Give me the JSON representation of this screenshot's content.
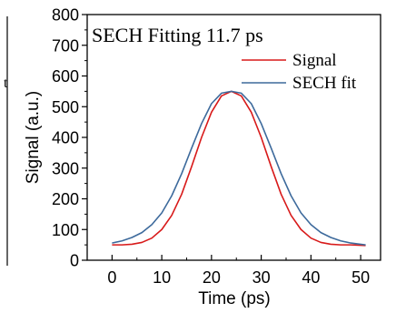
{
  "chart_data": {
    "type": "line",
    "title": "SECH Fitting 11.7 ps",
    "xlabel": "Time (ps)",
    "ylabel": "Signal (a.u.)",
    "xlim": [
      -5,
      54
    ],
    "ylim": [
      0,
      800
    ],
    "xticks": [
      0,
      10,
      20,
      30,
      40,
      50
    ],
    "yticks": [
      0,
      100,
      200,
      300,
      400,
      500,
      600,
      700,
      800
    ],
    "legend_position": "top-right",
    "grid": false,
    "colors": {
      "signal": "#d81a1a",
      "fit": "#3d6a9c"
    },
    "series": [
      {
        "name": "Signal",
        "x": [
          0,
          2,
          4,
          6,
          8,
          10,
          12,
          14,
          16,
          18,
          20,
          22,
          24,
          26,
          28,
          30,
          32,
          34,
          36,
          38,
          40,
          42,
          44,
          46,
          48,
          51
        ],
        "y": [
          50,
          50,
          52,
          58,
          72,
          100,
          146,
          215,
          305,
          400,
          482,
          535,
          550,
          535,
          482,
          400,
          305,
          215,
          146,
          100,
          72,
          58,
          52,
          50,
          50,
          48
        ]
      },
      {
        "name": "SECH fit",
        "x": [
          0,
          2,
          4,
          6,
          8,
          10,
          12,
          14,
          16,
          18,
          20,
          22,
          24,
          26,
          28,
          30,
          32,
          34,
          36,
          38,
          40,
          42,
          44,
          46,
          48,
          51
        ],
        "y": [
          56,
          63,
          74,
          90,
          116,
          154,
          210,
          282,
          365,
          445,
          510,
          544,
          550,
          544,
          510,
          445,
          365,
          282,
          210,
          154,
          116,
          90,
          74,
          63,
          56,
          50
        ]
      }
    ]
  }
}
